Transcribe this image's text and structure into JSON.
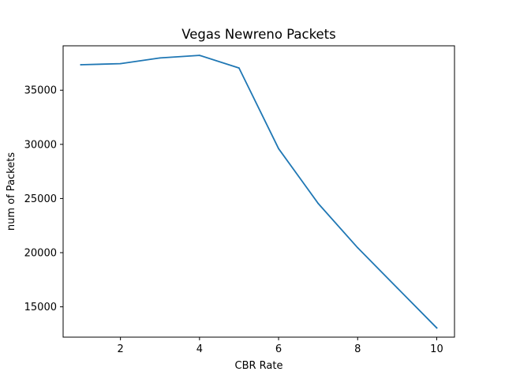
{
  "chart_data": {
    "type": "line",
    "title": "Vegas Newreno Packets",
    "xlabel": "CBR Rate",
    "ylabel": "num of Packets",
    "xlim": [
      0.55,
      10.45
    ],
    "ylim": [
      12200,
      39100
    ],
    "xticks": [
      2,
      4,
      6,
      8,
      10
    ],
    "yticks": [
      15000,
      20000,
      25000,
      30000,
      35000
    ],
    "grid": false,
    "series": [
      {
        "color": "#1f77b4",
        "x": [
          1,
          2,
          3,
          4,
          5,
          6,
          7,
          8,
          9,
          10
        ],
        "y": [
          37350,
          37450,
          37980,
          38220,
          37050,
          29600,
          24550,
          20450,
          16750,
          13050
        ]
      }
    ]
  }
}
